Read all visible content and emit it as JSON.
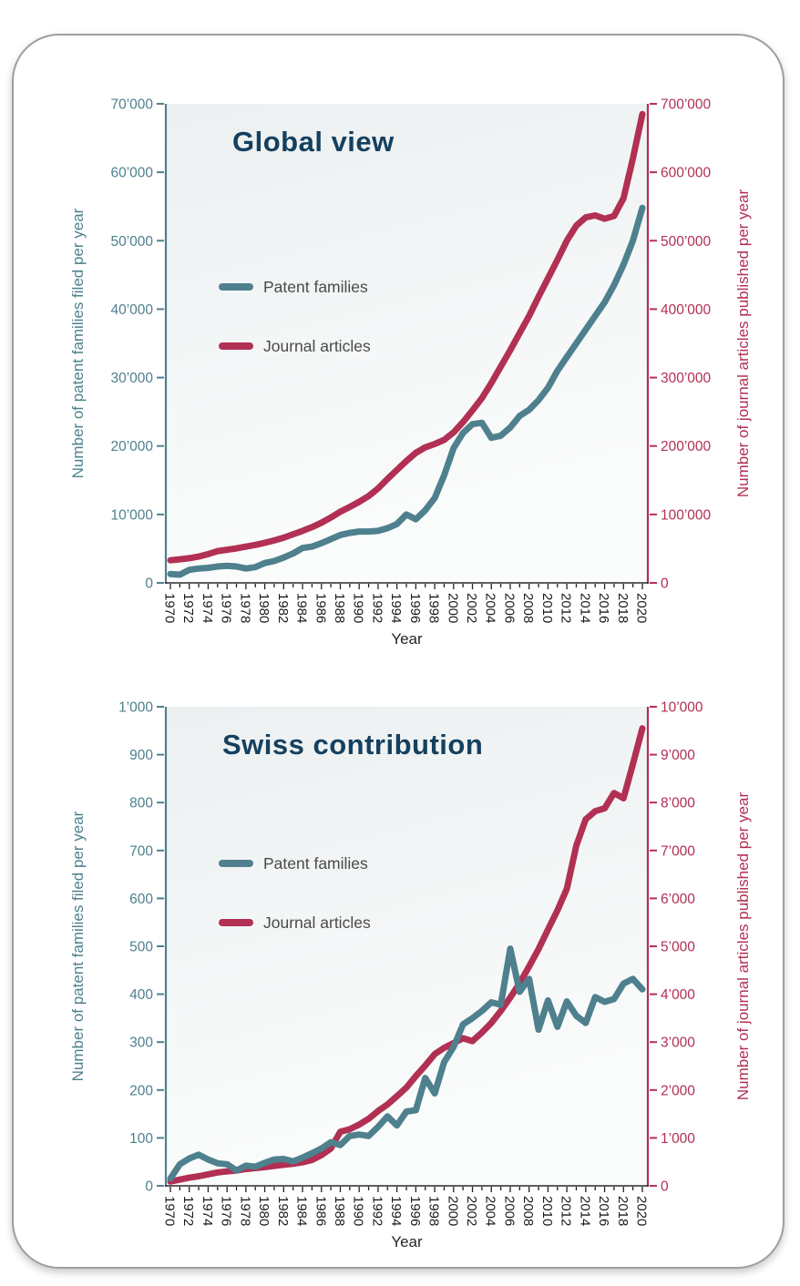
{
  "chart_data": [
    {
      "type": "line",
      "title": "Global view",
      "xlabel": "Year",
      "x": [
        1970,
        1971,
        1972,
        1973,
        1974,
        1975,
        1976,
        1977,
        1978,
        1979,
        1980,
        1981,
        1982,
        1983,
        1984,
        1985,
        1986,
        1987,
        1988,
        1989,
        1990,
        1991,
        1992,
        1993,
        1994,
        1995,
        1996,
        1997,
        1998,
        1999,
        2000,
        2001,
        2002,
        2003,
        2004,
        2005,
        2006,
        2007,
        2008,
        2009,
        2010,
        2011,
        2012,
        2013,
        2014,
        2015,
        2016,
        2017,
        2018,
        2019,
        2020
      ],
      "x_tick_label_every": 2,
      "left_axis": {
        "label": "Number of patent families filed per year",
        "color": "#4e808d",
        "min": 0,
        "max": 70000,
        "tick_step": 10000,
        "tick_labels": [
          "0",
          "10’000",
          "20’000",
          "30’000",
          "40’000",
          "50’000",
          "60’000",
          "70’000"
        ]
      },
      "right_axis": {
        "label": "Number of journal articles published per year",
        "color": "#b13053",
        "min": 0,
        "max": 700000,
        "tick_step": 100000,
        "tick_labels": [
          "0",
          "100’000",
          "200’000",
          "300’000",
          "400’000",
          "500’000",
          "600’000",
          "700’000"
        ]
      },
      "series": [
        {
          "name": "Patent families",
          "axis": "left",
          "color": "#4e808d",
          "values": [
            1300,
            1200,
            1900,
            2100,
            2200,
            2400,
            2500,
            2400,
            2100,
            2300,
            2900,
            3200,
            3700,
            4300,
            5100,
            5300,
            5800,
            6400,
            7000,
            7300,
            7500,
            7500,
            7600,
            8000,
            8600,
            10000,
            9300,
            10600,
            12400,
            15700,
            19700,
            21900,
            23200,
            23400,
            21200,
            21500,
            22700,
            24400,
            25300,
            26700,
            28500,
            31000,
            33000,
            35000,
            37000,
            39000,
            41000,
            43500,
            46500,
            50000,
            54800
          ]
        },
        {
          "name": "Journal articles",
          "axis": "right",
          "color": "#b13053",
          "values": [
            33000,
            34500,
            36000,
            38500,
            42000,
            46500,
            48500,
            50500,
            53000,
            55500,
            58500,
            62000,
            66000,
            71000,
            76000,
            81500,
            88000,
            95500,
            104000,
            111000,
            118500,
            127000,
            138000,
            152000,
            165000,
            178000,
            190000,
            198000,
            203000,
            209000,
            220000,
            235000,
            252000,
            270000,
            292000,
            316000,
            340000,
            365000,
            390000,
            418000,
            445000,
            472000,
            500000,
            522000,
            534000,
            537000,
            532000,
            536000,
            562000,
            620000,
            685000
          ]
        }
      ],
      "legend_position": "upper-left-inside",
      "grid": false
    },
    {
      "type": "line",
      "title": "Swiss contribution",
      "xlabel": "Year",
      "x": [
        1970,
        1971,
        1972,
        1973,
        1974,
        1975,
        1976,
        1977,
        1978,
        1979,
        1980,
        1981,
        1982,
        1983,
        1984,
        1985,
        1986,
        1987,
        1988,
        1989,
        1990,
        1991,
        1992,
        1993,
        1994,
        1995,
        1996,
        1997,
        1998,
        1999,
        2000,
        2001,
        2002,
        2003,
        2004,
        2005,
        2006,
        2007,
        2008,
        2009,
        2010,
        2011,
        2012,
        2013,
        2014,
        2015,
        2016,
        2017,
        2018,
        2019,
        2020
      ],
      "x_tick_label_every": 2,
      "left_axis": {
        "label": "Number of patent families filed per year",
        "color": "#4e808d",
        "min": 0,
        "max": 1000,
        "tick_step": 100,
        "tick_labels": [
          "0",
          "100",
          "200",
          "300",
          "400",
          "500",
          "600",
          "700",
          "800",
          "900",
          "1’000"
        ]
      },
      "right_axis": {
        "label": "Number of journal articles published per year",
        "color": "#b13053",
        "min": 0,
        "max": 10000,
        "tick_step": 1000,
        "tick_labels": [
          "0",
          "1’000",
          "2’000",
          "3’000",
          "4’000",
          "5’000",
          "6’000",
          "7’000",
          "8’000",
          "9’000",
          "10’000"
        ]
      },
      "series": [
        {
          "name": "Patent families",
          "axis": "left",
          "color": "#4e808d",
          "values": [
            15,
            45,
            57,
            65,
            55,
            47,
            45,
            32,
            42,
            40,
            48,
            55,
            56,
            51,
            59,
            68,
            78,
            91,
            85,
            104,
            107,
            104,
            123,
            145,
            126,
            155,
            158,
            225,
            193,
            258,
            290,
            337,
            350,
            365,
            383,
            378,
            495,
            405,
            432,
            326,
            387,
            332,
            385,
            355,
            340,
            394,
            384,
            390,
            422,
            432,
            410
          ]
        },
        {
          "name": "Journal articles",
          "axis": "right",
          "color": "#b13053",
          "values": [
            90,
            130,
            170,
            200,
            240,
            280,
            300,
            320,
            350,
            370,
            390,
            415,
            440,
            460,
            490,
            540,
            640,
            780,
            1130,
            1180,
            1280,
            1400,
            1560,
            1700,
            1870,
            2050,
            2290,
            2510,
            2750,
            2880,
            2980,
            3080,
            3020,
            3200,
            3400,
            3650,
            3930,
            4230,
            4580,
            4940,
            5350,
            5750,
            6200,
            7100,
            7650,
            7820,
            7880,
            8200,
            8090,
            8800,
            9550
          ]
        }
      ],
      "legend_position": "upper-left-inside",
      "grid": false
    }
  ],
  "styles": {
    "teal": "#4e808d",
    "crimson": "#b13053",
    "title_color": "#15405f",
    "legend_text_color": "#4a4a4a",
    "x_tick_color": "#1b1b1b",
    "card_border_color": "#9aa0a4",
    "plot_bg_top": "#ecf0f1",
    "plot_bg_bottom": "#fbfcfc"
  }
}
